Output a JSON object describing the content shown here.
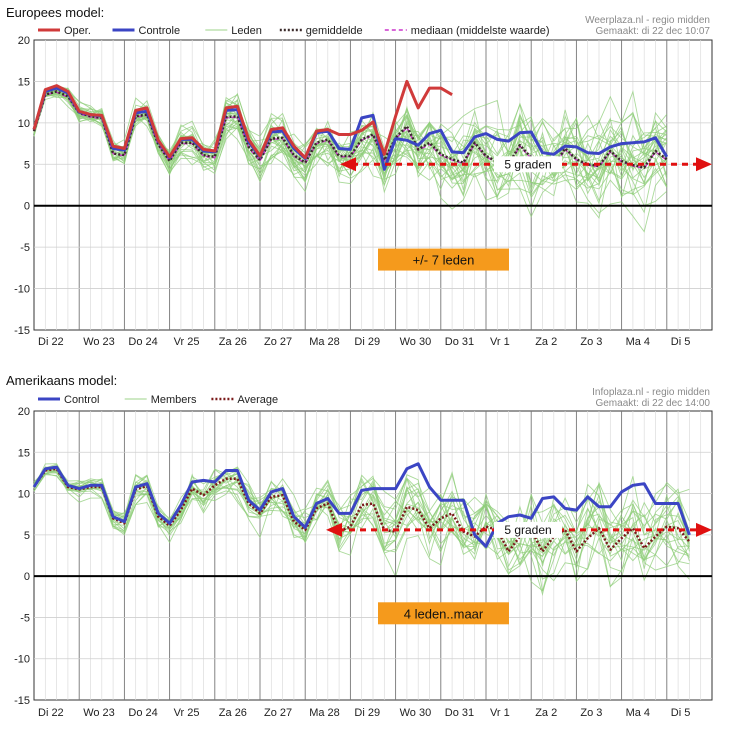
{
  "chart_data": [
    {
      "type": "line",
      "title": "Europees model:",
      "credit_line1": "Weerplaza.nl - regio midden",
      "credit_line2": "Gemaakt: di 22 dec 10:07",
      "ylim": [
        -15,
        20
      ],
      "yticks": [
        "20",
        "15",
        "10",
        "5",
        "0",
        "-5",
        "-10",
        "-15"
      ],
      "day_labels": [
        "Di 22",
        "Wo 23",
        "Do 24",
        "Vr 25",
        "Za 26",
        "Zo 27",
        "Ma 28",
        "Di 29",
        "Wo 30",
        "Do 31",
        "Vr 1",
        "Za 2",
        "Zo 3",
        "Ma 4",
        "Di 5"
      ],
      "legend": [
        {
          "key": "oper",
          "label": "Oper.",
          "style": "solid",
          "color": "#d03a3a"
        },
        {
          "key": "control",
          "label": "Controle",
          "style": "solid",
          "color": "#3b45c4"
        },
        {
          "key": "members",
          "label": "Leden",
          "style": "thin",
          "color": "#9dd38a"
        },
        {
          "key": "mean",
          "label": "gemiddelde",
          "style": "dotted",
          "color": "#3a2a2a"
        },
        {
          "key": "median",
          "label": "mediaan (middelste waarde)",
          "style": "dashed",
          "color": "#cc33cc"
        }
      ],
      "series": [
        {
          "key": "oper",
          "values": [
            9.2,
            14.0,
            14.5,
            13.8,
            11.4,
            11.0,
            10.9,
            7.2,
            6.9,
            11.5,
            11.8,
            7.9,
            5.9,
            8.1,
            8.2,
            6.8,
            6.6,
            11.8,
            12.0,
            8.0,
            6.0,
            9.2,
            9.4,
            7.2,
            5.8,
            9.0,
            9.2,
            8.6,
            8.6,
            9.1,
            10.1,
            6.2,
            10.8,
            15.0,
            11.8,
            14.2,
            14.2,
            13.4
          ]
        },
        {
          "key": "control",
          "values": [
            9.2,
            13.8,
            14.2,
            13.6,
            11.3,
            11.0,
            10.8,
            6.9,
            6.7,
            11.2,
            11.4,
            7.8,
            5.8,
            8.0,
            8.0,
            6.6,
            6.5,
            11.5,
            11.6,
            7.7,
            5.9,
            8.9,
            9.0,
            6.9,
            5.7,
            8.8,
            9.0,
            6.9,
            6.8,
            10.6,
            10.9,
            4.4,
            8.1,
            7.9,
            7.3,
            8.7,
            9.1,
            6.5,
            6.4,
            8.3,
            8.7,
            8.0,
            7.8,
            8.8,
            8.9,
            6.4,
            6.2,
            7.2,
            7.1,
            6.4,
            6.3,
            7.1,
            7.5,
            7.6,
            7.7,
            8.2,
            5.9
          ]
        },
        {
          "key": "mean",
          "values": [
            9.0,
            13.4,
            13.8,
            13.2,
            11.2,
            10.8,
            10.6,
            6.3,
            6.1,
            10.8,
            11.0,
            7.4,
            5.4,
            7.6,
            7.6,
            6.1,
            5.9,
            10.7,
            10.8,
            7.1,
            5.5,
            8.1,
            8.2,
            6.1,
            5.2,
            7.6,
            8.0,
            6.0,
            6.0,
            8.0,
            8.6,
            5.5,
            8.2,
            9.6,
            6.8,
            7.6,
            6.2,
            5.6,
            5.2,
            7.6,
            6.0,
            5.3,
            5.0,
            7.3,
            5.8,
            5.2,
            4.8,
            6.9,
            5.6,
            5.0,
            4.8,
            6.6,
            5.4,
            4.9,
            4.6,
            6.6,
            5.6
          ]
        },
        {
          "key": "median",
          "values": [
            9.0,
            13.4,
            13.7,
            13.1,
            11.1,
            10.7,
            10.5,
            6.3,
            6.0,
            10.7,
            10.9,
            7.3,
            5.4,
            7.5,
            7.5,
            6.0,
            5.8,
            10.6,
            10.7,
            7.0,
            5.4,
            8.0,
            8.1,
            6.0,
            5.1,
            7.5,
            7.9,
            5.9,
            5.9,
            7.9,
            8.5,
            5.4,
            8.1,
            9.4,
            6.7,
            7.4,
            6.1,
            5.5,
            5.1,
            7.5,
            5.9,
            5.2,
            4.9,
            7.2,
            5.7,
            5.1,
            4.7,
            6.8,
            5.5,
            4.9,
            4.7,
            6.5,
            5.3,
            4.8,
            4.5,
            6.5,
            5.5
          ]
        }
      ],
      "annotation_band": {
        "value": 5.0,
        "label": "5 graden"
      },
      "annotation_box": {
        "label": "+/- 7 leden",
        "value": -6.5
      }
    },
    {
      "type": "line",
      "title": "Amerikaans model:",
      "credit_line1": "Infoplaza.nl - regio midden",
      "credit_line2": "Gemaakt: di 22 dec 14:00",
      "ylim": [
        -15,
        20
      ],
      "yticks": [
        "20",
        "15",
        "10",
        "5",
        "0",
        "-5",
        "-10",
        "-15"
      ],
      "day_labels": [
        "Di 22",
        "Wo 23",
        "Do 24",
        "Vr 25",
        "Za 26",
        "Zo 27",
        "Ma 28",
        "Di 29",
        "Wo 30",
        "Do 31",
        "Vr 1",
        "Za 2",
        "Zo 3",
        "Ma 4",
        "Di 5"
      ],
      "legend": [
        {
          "key": "control",
          "label": "Control",
          "style": "solid",
          "color": "#3b45c4"
        },
        {
          "key": "members",
          "label": "Members",
          "style": "thin",
          "color": "#9dd38a"
        },
        {
          "key": "average",
          "label": "Average",
          "style": "dotted",
          "color": "#7a1a1a"
        }
      ],
      "series": [
        {
          "key": "control",
          "values": [
            10.8,
            13.0,
            13.2,
            11.0,
            10.6,
            11.0,
            11.0,
            7.2,
            6.6,
            10.8,
            11.2,
            7.6,
            6.4,
            8.6,
            11.4,
            11.6,
            11.4,
            12.8,
            12.8,
            9.2,
            8.0,
            10.2,
            10.6,
            7.2,
            5.9,
            8.8,
            9.4,
            7.6,
            7.6,
            10.4,
            10.6,
            10.6,
            10.6,
            13.0,
            13.6,
            10.8,
            9.2,
            9.2,
            9.2,
            5.0,
            3.6,
            6.4,
            7.2,
            7.4,
            7.0,
            9.4,
            9.6,
            8.2,
            8.0,
            9.6,
            8.4,
            8.4,
            10.2,
            11.0,
            11.2,
            8.8,
            8.8,
            8.8,
            5.0
          ]
        },
        {
          "key": "average",
          "values": [
            10.8,
            12.8,
            13.0,
            10.8,
            10.5,
            10.8,
            10.8,
            7.0,
            6.4,
            10.5,
            10.9,
            7.2,
            6.1,
            8.0,
            10.6,
            9.8,
            11.0,
            11.8,
            11.8,
            8.8,
            7.6,
            9.6,
            9.8,
            6.6,
            5.6,
            8.2,
            8.8,
            5.4,
            6.0,
            8.6,
            8.8,
            5.6,
            5.4,
            8.4,
            8.0,
            5.8,
            7.0,
            7.6,
            5.4,
            4.8,
            6.0,
            5.6,
            3.0,
            4.8,
            5.6,
            3.0,
            4.8,
            5.6,
            3.0,
            4.6,
            5.8,
            3.2,
            4.6,
            5.8,
            3.4,
            4.8,
            6.0,
            5.8,
            4.2
          ]
        }
      ],
      "annotation_band": {
        "value": 5.6,
        "label": "5 graden"
      },
      "annotation_box": {
        "label": "4 leden..maar",
        "value": -4.5
      }
    }
  ]
}
